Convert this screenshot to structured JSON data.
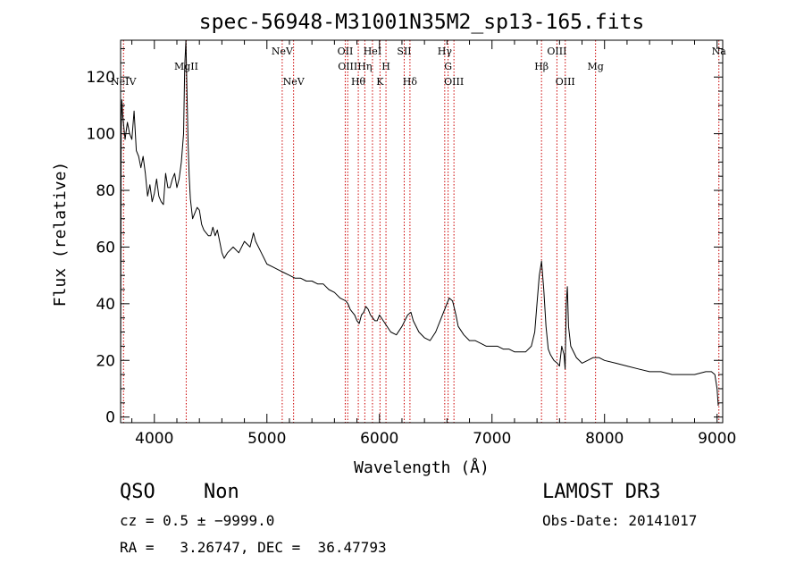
{
  "chart_data": {
    "type": "line",
    "title": "spec-56948-M31001N35M2_sp13-165.fits",
    "xlabel": "Wavelength (Å)",
    "ylabel": "Flux (relative)",
    "xlim": [
      3700,
      9050
    ],
    "ylim": [
      -2,
      133
    ],
    "xticks": [
      4000,
      5000,
      6000,
      7000,
      8000,
      9000
    ],
    "yticks": [
      0,
      20,
      40,
      60,
      80,
      100,
      120
    ],
    "colors": {
      "spectrum": "#000000",
      "line_marker": "#cc0000",
      "axes": "#000000"
    },
    "spectrum": {
      "name": "QSO spectrum",
      "x": [
        3700,
        3705,
        3710,
        3720,
        3740,
        3760,
        3780,
        3800,
        3820,
        3840,
        3860,
        3880,
        3900,
        3920,
        3940,
        3960,
        3980,
        4000,
        4020,
        4040,
        4060,
        4080,
        4100,
        4120,
        4140,
        4160,
        4180,
        4200,
        4220,
        4240,
        4260,
        4270,
        4280,
        4290,
        4300,
        4310,
        4320,
        4340,
        4360,
        4380,
        4400,
        4420,
        4440,
        4460,
        4480,
        4500,
        4520,
        4540,
        4560,
        4580,
        4600,
        4620,
        4650,
        4700,
        4750,
        4800,
        4850,
        4880,
        4900,
        4950,
        5000,
        5050,
        5100,
        5150,
        5200,
        5250,
        5300,
        5350,
        5400,
        5450,
        5500,
        5550,
        5600,
        5650,
        5700,
        5720,
        5740,
        5760,
        5780,
        5800,
        5820,
        5840,
        5860,
        5880,
        5900,
        5920,
        5940,
        5960,
        5980,
        6000,
        6050,
        6100,
        6150,
        6200,
        6250,
        6280,
        6300,
        6350,
        6400,
        6450,
        6500,
        6550,
        6600,
        6620,
        6650,
        6680,
        6700,
        6750,
        6800,
        6850,
        6900,
        6950,
        7000,
        7050,
        7100,
        7150,
        7200,
        7250,
        7300,
        7350,
        7380,
        7400,
        7420,
        7440,
        7460,
        7480,
        7500,
        7520,
        7550,
        7580,
        7600,
        7620,
        7640,
        7650,
        7660,
        7670,
        7680,
        7700,
        7750,
        7800,
        7850,
        7900,
        7950,
        8000,
        8100,
        8200,
        8300,
        8400,
        8500,
        8600,
        8700,
        8800,
        8900,
        8950,
        8980,
        9000,
        9010
      ],
      "y": [
        2,
        100,
        112,
        106,
        98,
        104,
        100,
        98,
        108,
        94,
        92,
        88,
        92,
        86,
        78,
        82,
        76,
        79,
        84,
        78,
        76,
        75,
        86,
        81,
        81,
        84,
        86,
        81,
        84,
        90,
        100,
        124,
        133,
        115,
        96,
        85,
        77,
        70,
        72,
        74,
        73,
        68,
        66,
        65,
        64,
        64,
        67,
        64,
        66,
        62,
        58,
        56,
        58,
        60,
        58,
        62,
        60,
        65,
        62,
        58,
        54,
        53,
        52,
        51,
        50,
        49,
        49,
        48,
        48,
        47,
        47,
        45,
        44,
        42,
        41,
        40,
        38,
        37,
        36,
        34,
        33,
        36,
        37,
        39,
        38,
        36,
        35,
        34,
        34,
        36,
        33,
        30,
        29,
        32,
        36,
        37,
        34,
        30,
        28,
        27,
        30,
        35,
        40,
        42,
        41,
        36,
        32,
        29,
        27,
        27,
        26,
        25,
        25,
        25,
        24,
        24,
        23,
        23,
        23,
        25,
        30,
        40,
        50,
        55,
        45,
        32,
        24,
        22,
        20,
        19,
        18,
        25,
        22,
        17,
        40,
        46,
        32,
        25,
        21,
        19,
        20,
        21,
        21,
        20,
        19,
        18,
        17,
        16,
        16,
        15,
        15,
        15,
        16,
        16,
        15,
        10,
        4
      ]
    },
    "lines": [
      {
        "label": "NeIV",
        "x": 3726,
        "row": 2
      },
      {
        "label": "MgII",
        "x": 4283,
        "row": 1
      },
      {
        "label": "NeV",
        "x": 5136,
        "row": 0
      },
      {
        "label": "NeV",
        "x": 5237,
        "row": 2
      },
      {
        "label": "OII",
        "x": 5696,
        "row": 0
      },
      {
        "label": "OIII",
        "x": 5718,
        "row": 1
      },
      {
        "label": "Hθ",
        "x": 5812,
        "row": 2
      },
      {
        "label": "Hη",
        "x": 5870,
        "row": 1
      },
      {
        "label": "HeI",
        "x": 5938,
        "row": 0
      },
      {
        "label": "K",
        "x": 6005,
        "row": 2
      },
      {
        "label": "H",
        "x": 6058,
        "row": 1
      },
      {
        "label": "SII",
        "x": 6220,
        "row": 0
      },
      {
        "label": "Hδ",
        "x": 6271,
        "row": 2
      },
      {
        "label": "Hγ",
        "x": 6580,
        "row": 0
      },
      {
        "label": "G",
        "x": 6610,
        "row": 1
      },
      {
        "label": "OIII",
        "x": 6662,
        "row": 2
      },
      {
        "label": "Hβ",
        "x": 7440,
        "row": 1
      },
      {
        "label": "OIII",
        "x": 7577,
        "row": 0
      },
      {
        "label": "OIII",
        "x": 7651,
        "row": 2
      },
      {
        "label": "Mg",
        "x": 7920,
        "row": 1
      },
      {
        "label": "Na",
        "x": 9016,
        "row": 0
      }
    ]
  },
  "info": {
    "class_label": "QSO",
    "subclass_label": "Non",
    "survey": "LAMOST DR3",
    "cz": "cz = 0.5 ± −9999.0",
    "obs_date": "Obs-Date: 20141017",
    "coords": "RA =   3.26747, DEC =  36.47793"
  }
}
